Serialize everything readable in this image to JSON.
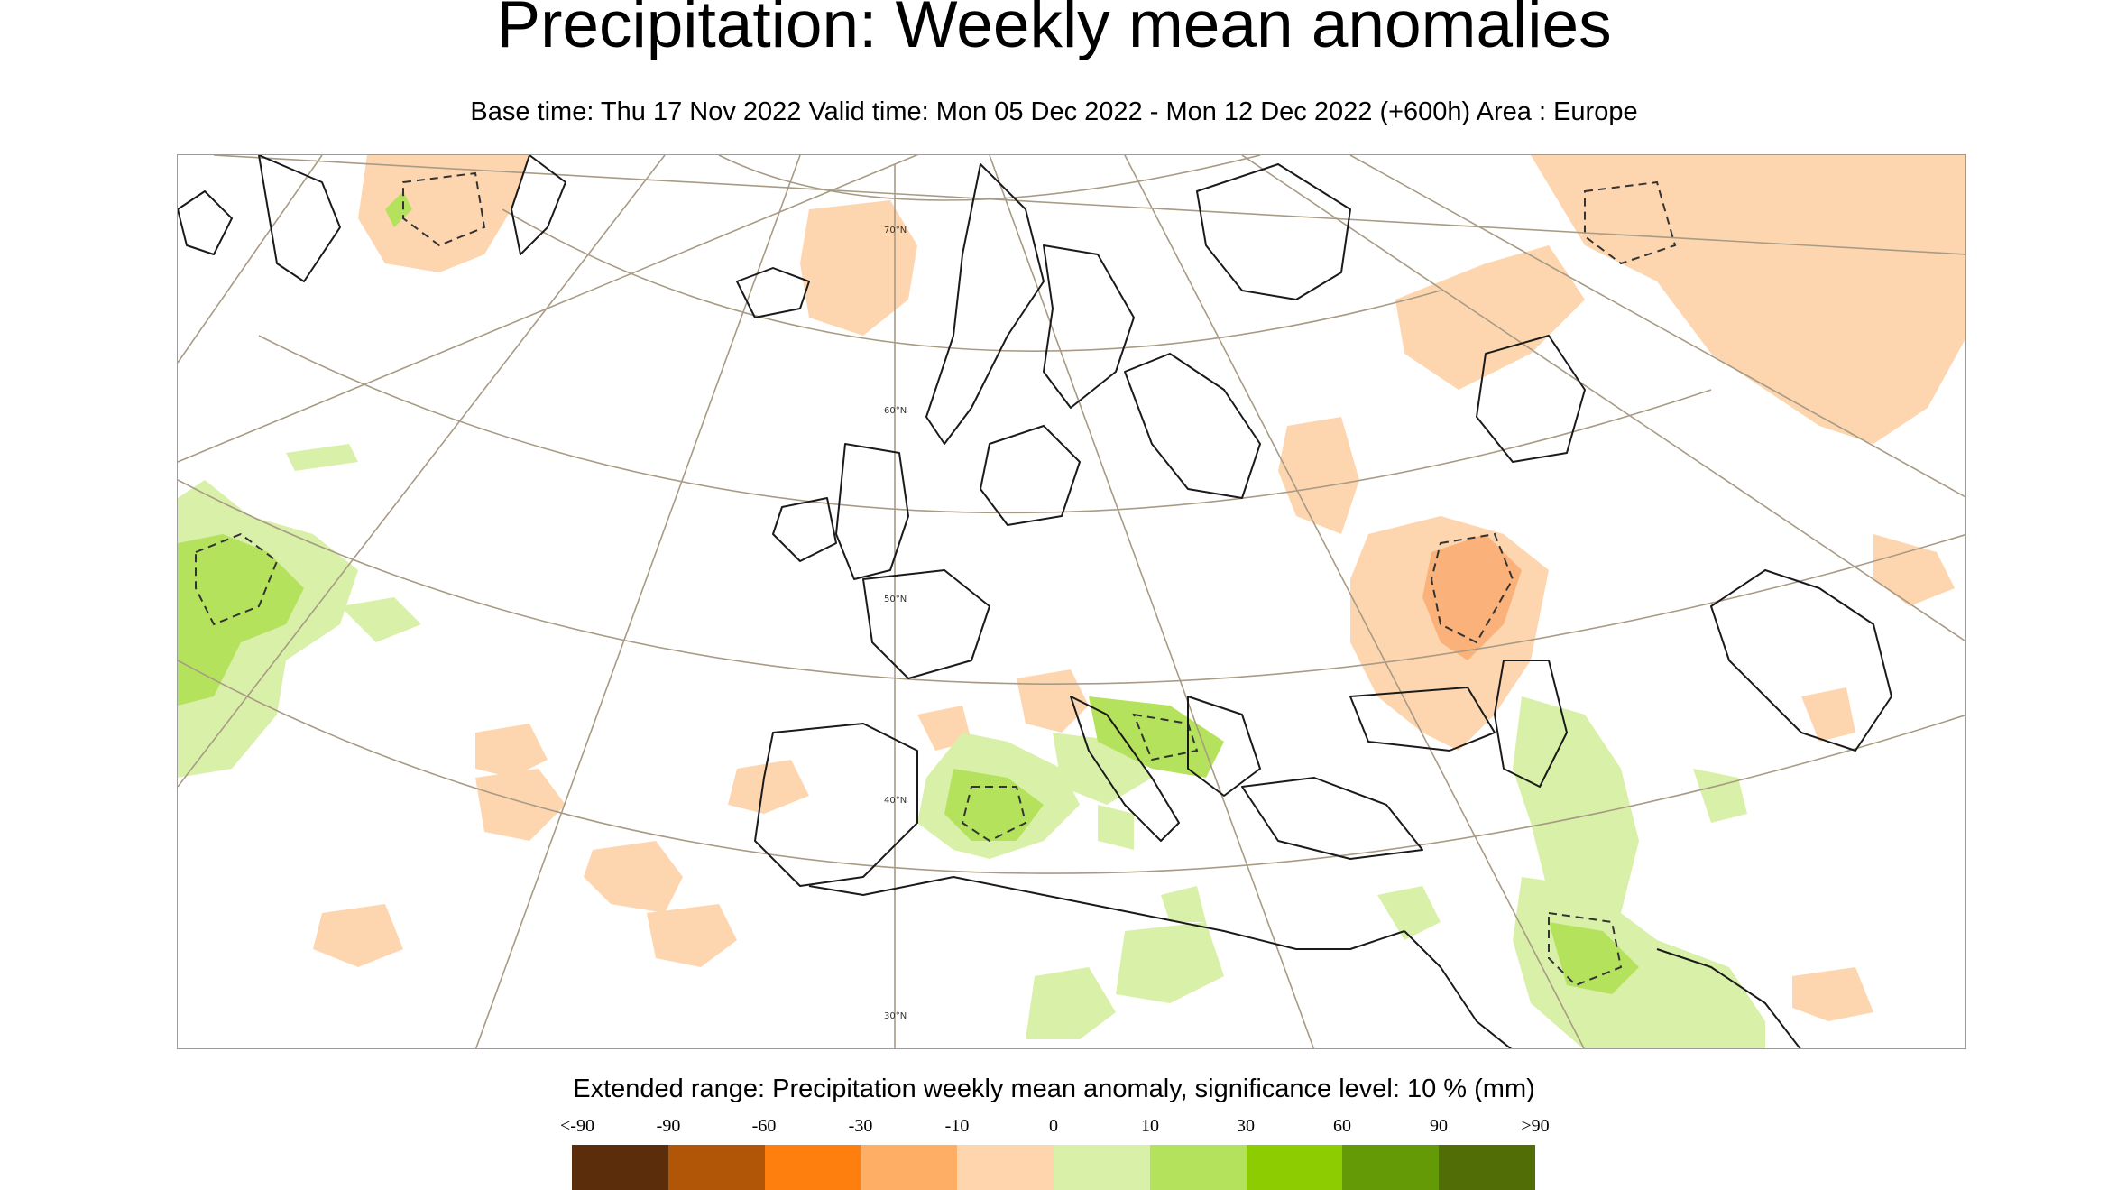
{
  "header": {
    "title": "Precipitation: Weekly mean anomalies",
    "subtitle": "Base time: Thu 17 Nov 2022 Valid time: Mon 05 Dec 2022 - Mon 12 Dec 2022 (+600h) Area : Europe"
  },
  "map": {
    "latitude_labels": [
      "70°N",
      "60°N",
      "50°N",
      "40°N",
      "30°N"
    ],
    "colors": {
      "grid": "#a89b85",
      "coast": "#1a1a1a",
      "dry_light": "#fdd6b0",
      "dry_mid": "#fbb27a",
      "wet_light": "#d9f0a8",
      "wet_mid": "#b5e25d",
      "wet_dark": "#8fcc1a"
    }
  },
  "legend": {
    "title": "Extended range: Precipitation weekly mean anomaly, significance level: 10 % (mm)",
    "labels": [
      "<-90",
      "-90",
      "-60",
      "-30",
      "-10",
      "0",
      "10",
      "30",
      "60",
      "90",
      ">90"
    ],
    "colors": [
      "#5c2d0a",
      "#b05606",
      "#ff7f0e",
      "#ffae66",
      "#ffd5ae",
      "#d9f0a8",
      "#b5e25d",
      "#8ccc00",
      "#639a05",
      "#506e05"
    ]
  }
}
